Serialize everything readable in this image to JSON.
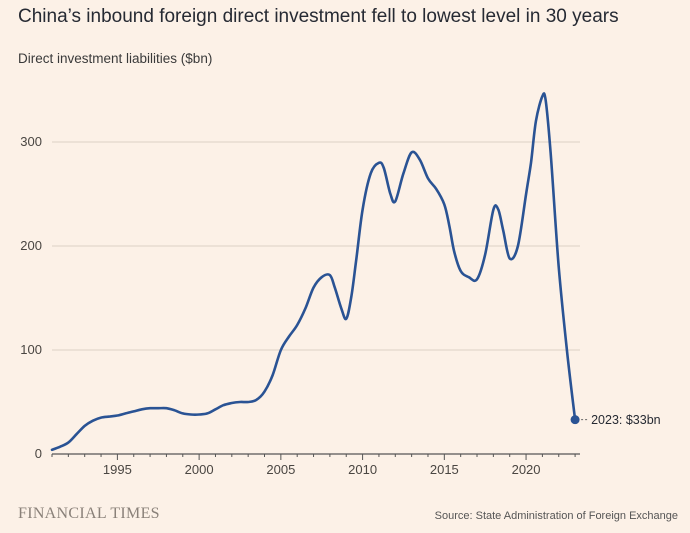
{
  "title": "China’s inbound foreign direct investment fell to lowest level in 30 years",
  "subtitle": "Direct investment liabilities ($bn)",
  "brand": "FINANCIAL TIMES",
  "source": "Source: State Administration of Foreign Exchange",
  "colors": {
    "background": "#fcf1e7",
    "line": "#2a5394",
    "grid": "#dcd1c6",
    "axis": "#555555"
  },
  "chart_data": {
    "type": "line",
    "title": "China’s inbound foreign direct investment fell to lowest level in 30 years",
    "ylabel": "Direct investment liabilities ($bn)",
    "xlim": [
      1991,
      2023.3
    ],
    "ylim": [
      0,
      350
    ],
    "y_ticks": [
      0,
      100,
      200,
      300
    ],
    "x_ticks": [
      1995,
      2000,
      2005,
      2010,
      2015,
      2020
    ],
    "grid": "horizontal",
    "annotation": "2023: $33bn",
    "series": [
      {
        "x": [
          1991,
          1991.5,
          1992,
          1992.5,
          1993,
          1993.5,
          1994,
          1994.5,
          1995,
          1995.5,
          1996,
          1996.5,
          1997,
          1997.5,
          1998,
          1998.5,
          1999,
          1999.5,
          2000,
          2000.5,
          2001,
          2001.5,
          2002,
          2002.5,
          2003,
          2003.5,
          2004,
          2004.5,
          2005,
          2005.5,
          2006,
          2006.5,
          2007,
          2007.5,
          2008,
          2008.3,
          2008.7,
          2009,
          2009.3,
          2009.6,
          2010,
          2010.5,
          2011,
          2011.3,
          2011.7,
          2012,
          2012.5,
          2013,
          2013.5,
          2014,
          2014.5,
          2015,
          2015.3,
          2015.6,
          2016,
          2016.5,
          2017,
          2017.5,
          2018,
          2018.3,
          2018.6,
          2019,
          2019.5,
          2020,
          2020.3,
          2020.6,
          2021,
          2021.2,
          2021.5,
          2022,
          2022.5,
          2023
        ],
        "y": [
          4,
          7,
          11,
          19,
          27,
          32,
          35,
          36,
          37,
          39,
          41,
          43,
          44,
          44,
          44,
          42,
          39,
          38,
          38,
          39,
          43,
          47,
          49,
          50,
          50,
          52,
          60,
          76,
          100,
          113,
          124,
          140,
          160,
          170,
          172,
          160,
          140,
          130,
          150,
          185,
          235,
          270,
          280,
          275,
          250,
          243,
          270,
          290,
          283,
          265,
          255,
          240,
          220,
          195,
          176,
          170,
          168,
          192,
          235,
          235,
          215,
          188,
          200,
          250,
          280,
          320,
          344,
          340,
          290,
          180,
          100,
          33
        ]
      }
    ]
  }
}
